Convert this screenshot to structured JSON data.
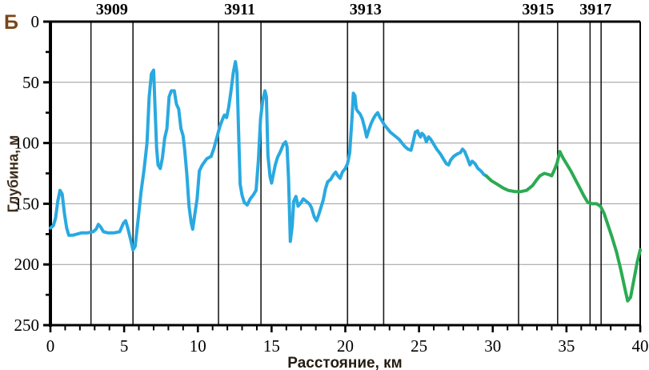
{
  "panel_label": "Б",
  "colors": {
    "profile_blue": "#29a9e0",
    "profile_green": "#2bab52",
    "grid": "#9b9b9b",
    "axis": "#000000",
    "section_line": "#1c1c1c",
    "panel_label_color": "#7a4517"
  },
  "chart_data": {
    "type": "line",
    "title": "",
    "xlabel": "Расстояние, км",
    "ylabel": "Глубина, м",
    "x_range_km": [
      0,
      40
    ],
    "depth_range_m": [
      0,
      250
    ],
    "y_axis_inverted_depth": true,
    "x_major_ticks": [
      0,
      5,
      10,
      15,
      20,
      25,
      30,
      35,
      40
    ],
    "x_minor_step_km": 1,
    "y_major_ticks": [
      0,
      50,
      100,
      150,
      200,
      250
    ],
    "y_minor_step_m": 25,
    "horizontal_gridlines_m": [
      50,
      100,
      150,
      200
    ],
    "legend_position": "none",
    "stations": [
      {
        "label": "3909",
        "from_km": 2.75,
        "to_km": 5.6
      },
      {
        "label": "3911",
        "from_km": 11.4,
        "to_km": 14.28
      },
      {
        "label": "3913",
        "from_km": 20.15,
        "to_km": 22.6
      },
      {
        "label": "3915",
        "from_km": 31.75,
        "to_km": 34.4
      },
      {
        "label": "3917",
        "from_km": 36.6,
        "to_km": 37.35
      }
    ],
    "series": [
      {
        "name": "depth-profile-measured",
        "color": "#29a9e0",
        "points_km_m": [
          [
            0,
            170
          ],
          [
            0.2,
            168
          ],
          [
            0.35,
            162
          ],
          [
            0.5,
            148
          ],
          [
            0.65,
            139
          ],
          [
            0.8,
            142
          ],
          [
            0.95,
            158
          ],
          [
            1.1,
            170
          ],
          [
            1.25,
            176
          ],
          [
            1.5,
            176
          ],
          [
            1.8,
            175
          ],
          [
            2.1,
            174
          ],
          [
            2.5,
            174
          ],
          [
            2.9,
            173
          ],
          [
            3.1,
            171
          ],
          [
            3.25,
            167
          ],
          [
            3.4,
            169
          ],
          [
            3.6,
            173
          ],
          [
            3.9,
            174
          ],
          [
            4.3,
            174
          ],
          [
            4.7,
            173
          ],
          [
            4.95,
            166
          ],
          [
            5.1,
            164
          ],
          [
            5.25,
            170
          ],
          [
            5.45,
            180
          ],
          [
            5.6,
            188
          ],
          [
            5.75,
            185
          ],
          [
            5.95,
            163
          ],
          [
            6.15,
            140
          ],
          [
            6.35,
            122
          ],
          [
            6.55,
            100
          ],
          [
            6.7,
            62
          ],
          [
            6.85,
            43
          ],
          [
            7.0,
            40
          ],
          [
            7.1,
            72
          ],
          [
            7.2,
            104
          ],
          [
            7.3,
            118
          ],
          [
            7.45,
            121
          ],
          [
            7.6,
            112
          ],
          [
            7.75,
            96
          ],
          [
            7.9,
            88
          ],
          [
            8.05,
            62
          ],
          [
            8.2,
            57
          ],
          [
            8.4,
            57
          ],
          [
            8.55,
            68
          ],
          [
            8.7,
            72
          ],
          [
            8.85,
            88
          ],
          [
            9.0,
            94
          ],
          [
            9.1,
            105
          ],
          [
            9.25,
            125
          ],
          [
            9.4,
            152
          ],
          [
            9.55,
            166
          ],
          [
            9.65,
            171
          ],
          [
            9.8,
            158
          ],
          [
            9.95,
            146
          ],
          [
            10.1,
            123
          ],
          [
            10.3,
            118
          ],
          [
            10.6,
            113
          ],
          [
            10.9,
            111
          ],
          [
            11.1,
            104
          ],
          [
            11.3,
            95
          ],
          [
            11.5,
            86
          ],
          [
            11.65,
            81
          ],
          [
            11.8,
            77
          ],
          [
            11.95,
            79
          ],
          [
            12.1,
            70
          ],
          [
            12.25,
            57
          ],
          [
            12.4,
            42
          ],
          [
            12.55,
            33
          ],
          [
            12.65,
            42
          ],
          [
            12.75,
            85
          ],
          [
            12.87,
            134
          ],
          [
            13.0,
            143
          ],
          [
            13.15,
            149
          ],
          [
            13.35,
            151
          ],
          [
            13.55,
            146
          ],
          [
            13.75,
            143
          ],
          [
            13.95,
            139
          ],
          [
            14.1,
            115
          ],
          [
            14.25,
            80
          ],
          [
            14.4,
            65
          ],
          [
            14.55,
            57
          ],
          [
            14.65,
            62
          ],
          [
            14.75,
            110
          ],
          [
            14.9,
            128
          ],
          [
            15.0,
            133
          ],
          [
            15.1,
            127
          ],
          [
            15.25,
            118
          ],
          [
            15.4,
            112
          ],
          [
            15.6,
            107
          ],
          [
            15.8,
            101
          ],
          [
            15.95,
            99
          ],
          [
            16.05,
            103
          ],
          [
            16.15,
            130
          ],
          [
            16.27,
            181
          ],
          [
            16.4,
            168
          ],
          [
            16.5,
            148
          ],
          [
            16.65,
            144
          ],
          [
            16.8,
            152
          ],
          [
            17.0,
            149
          ],
          [
            17.15,
            146
          ],
          [
            17.35,
            148
          ],
          [
            17.55,
            150
          ],
          [
            17.7,
            153
          ],
          [
            17.9,
            161
          ],
          [
            18.05,
            164
          ],
          [
            18.2,
            159
          ],
          [
            18.35,
            153
          ],
          [
            18.5,
            147
          ],
          [
            18.65,
            138
          ],
          [
            18.8,
            132
          ],
          [
            19.0,
            130
          ],
          [
            19.2,
            126
          ],
          [
            19.35,
            124
          ],
          [
            19.5,
            127
          ],
          [
            19.65,
            129
          ],
          [
            19.8,
            124
          ],
          [
            20.0,
            121
          ],
          [
            20.15,
            117
          ],
          [
            20.3,
            108
          ],
          [
            20.45,
            80
          ],
          [
            20.55,
            59
          ],
          [
            20.65,
            61
          ],
          [
            20.75,
            72
          ],
          [
            20.85,
            74
          ],
          [
            21.0,
            76
          ],
          [
            21.15,
            80
          ],
          [
            21.3,
            87
          ],
          [
            21.45,
            95
          ],
          [
            21.6,
            89
          ],
          [
            21.75,
            84
          ],
          [
            21.9,
            80
          ],
          [
            22.05,
            77
          ],
          [
            22.2,
            75
          ],
          [
            22.35,
            79
          ],
          [
            22.5,
            82
          ],
          [
            22.65,
            85
          ],
          [
            22.85,
            88
          ],
          [
            23.05,
            91
          ],
          [
            23.25,
            93
          ],
          [
            23.45,
            95
          ],
          [
            23.65,
            97
          ],
          [
            23.85,
            100
          ],
          [
            24.05,
            103
          ],
          [
            24.25,
            105
          ],
          [
            24.45,
            106
          ],
          [
            24.6,
            99
          ],
          [
            24.75,
            91
          ],
          [
            24.9,
            90
          ],
          [
            25.0,
            93
          ],
          [
            25.1,
            95
          ],
          [
            25.2,
            92
          ],
          [
            25.35,
            94
          ],
          [
            25.5,
            99
          ],
          [
            25.65,
            95
          ],
          [
            25.8,
            97
          ],
          [
            26.0,
            101
          ],
          [
            26.2,
            105
          ],
          [
            26.45,
            109
          ],
          [
            26.65,
            113
          ],
          [
            26.85,
            117
          ],
          [
            27.0,
            118
          ],
          [
            27.15,
            114
          ],
          [
            27.35,
            111
          ],
          [
            27.6,
            109
          ],
          [
            27.8,
            108
          ],
          [
            27.95,
            105
          ],
          [
            28.1,
            107
          ],
          [
            28.3,
            113
          ],
          [
            28.45,
            118
          ],
          [
            28.6,
            115
          ],
          [
            28.8,
            117
          ],
          [
            29.0,
            121
          ],
          [
            29.2,
            123
          ],
          [
            29.4,
            126
          ],
          [
            29.55,
            127
          ]
        ]
      },
      {
        "name": "depth-profile-continuation",
        "color": "#2bab52",
        "points_km_m": [
          [
            29.55,
            127
          ],
          [
            29.9,
            131
          ],
          [
            30.3,
            134
          ],
          [
            30.7,
            137
          ],
          [
            31.05,
            139
          ],
          [
            31.5,
            140
          ],
          [
            31.9,
            140
          ],
          [
            32.3,
            139
          ],
          [
            32.7,
            135
          ],
          [
            33.0,
            130
          ],
          [
            33.2,
            127
          ],
          [
            33.5,
            125
          ],
          [
            33.8,
            126
          ],
          [
            34.0,
            127
          ],
          [
            34.15,
            123
          ],
          [
            34.35,
            117
          ],
          [
            34.55,
            107
          ],
          [
            34.75,
            112
          ],
          [
            35.0,
            117
          ],
          [
            35.3,
            123
          ],
          [
            35.6,
            130
          ],
          [
            35.9,
            137
          ],
          [
            36.2,
            144
          ],
          [
            36.45,
            149
          ],
          [
            36.75,
            150
          ],
          [
            37.05,
            150
          ],
          [
            37.3,
            152
          ],
          [
            37.55,
            158
          ],
          [
            37.8,
            167
          ],
          [
            38.1,
            178
          ],
          [
            38.4,
            190
          ],
          [
            38.7,
            205
          ],
          [
            39.0,
            222
          ],
          [
            39.15,
            230
          ],
          [
            39.35,
            227
          ],
          [
            39.6,
            211
          ],
          [
            39.8,
            198
          ],
          [
            40.0,
            188
          ]
        ]
      }
    ]
  }
}
